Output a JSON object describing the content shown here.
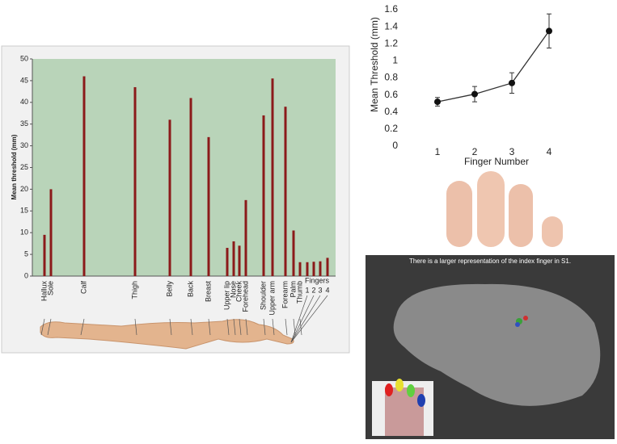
{
  "chart_data": [
    {
      "type": "bar",
      "ylabel": "Mean threshold (mm)",
      "categories": [
        "Hallux",
        "Sole",
        "Calf",
        "Thigh",
        "Belly",
        "Back",
        "Breast",
        "Upper lip",
        "Nose",
        "Cheek",
        "Forehead",
        "Shoulder",
        "Upper arm",
        "Forearm",
        "Palm",
        "Thumb",
        "1",
        "2",
        "3",
        "4"
      ],
      "values": [
        9.5,
        20,
        46,
        43.5,
        36,
        41,
        32,
        6.5,
        8,
        7,
        17.5,
        37,
        45.5,
        39,
        10.5,
        3.2,
        3.2,
        3.3,
        3.4,
        4.2
      ],
      "annotations": [
        "Fingers"
      ],
      "color": "#8b1a1a",
      "ylim": [
        0,
        50
      ],
      "yticks": [
        0,
        5,
        10,
        15,
        20,
        25,
        30,
        35,
        40,
        45,
        50
      ]
    },
    {
      "type": "line",
      "xlabel": "Finger Number",
      "ylabel": "Mean Threshold (mm)",
      "x": [
        1,
        2,
        3,
        4
      ],
      "values": [
        0.52,
        0.61,
        0.74,
        1.35
      ],
      "errors": [
        0.05,
        0.09,
        0.12,
        0.2
      ],
      "color": "#111111",
      "xlim": [
        0.5,
        4.5
      ],
      "xticks": [
        1,
        2,
        3,
        4
      ],
      "ylim": [
        0,
        1.6
      ],
      "yticks": [
        0,
        0.2,
        0.4,
        0.6,
        0.8,
        1,
        1.2,
        1.4,
        1.6
      ]
    }
  ],
  "brain_panel": {
    "caption": "There is a larger representation of the index finger in S1."
  }
}
